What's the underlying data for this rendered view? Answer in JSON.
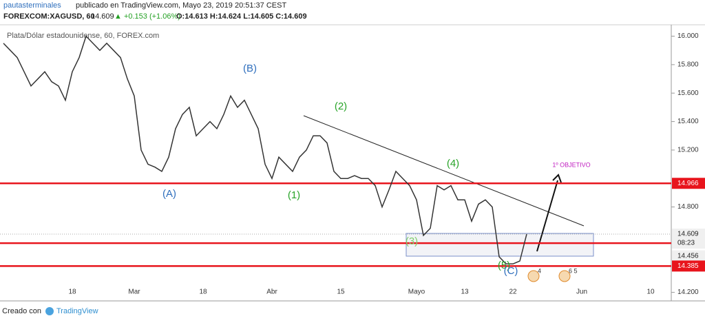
{
  "header": {
    "author": "pautasterminales",
    "published": "publicado en TradingView.com, Mayo 23, 2019 20:51:37 CEST",
    "symbol": "FOREXCOM:XAGUSD, 60",
    "price": "14.609",
    "change": "▲ +0.153 (+1.06%)",
    "ohlc": "O:14.613 H:14.624 L:14.605 C:14.609"
  },
  "chart_data": {
    "type": "line",
    "title": "Plata/Dólar estadounidense, 60, FOREX.com",
    "categories": [
      null,
      null,
      null,
      null,
      null,
      null,
      null,
      null,
      null,
      null,
      "18",
      null,
      null,
      null,
      null,
      null,
      null,
      null,
      null,
      "Mar",
      null,
      null,
      null,
      null,
      null,
      null,
      null,
      null,
      null,
      "18",
      null,
      null,
      null,
      null,
      null,
      null,
      null,
      null,
      null,
      "Abr",
      null,
      null,
      null,
      null,
      null,
      null,
      null,
      null,
      null,
      "15",
      null,
      null,
      null,
      null,
      null,
      null,
      null,
      null,
      null,
      null,
      "Mayo",
      null,
      null,
      null,
      null,
      null,
      null,
      "13",
      null,
      null,
      null,
      null,
      null,
      null,
      "22",
      null,
      null,
      null,
      null,
      null,
      null,
      null,
      null,
      null,
      "Jun",
      null,
      null,
      null,
      null,
      null,
      null,
      null,
      null,
      null,
      "10",
      null,
      null
    ],
    "series": [
      {
        "color": "#333333",
        "values": [
          15.95,
          15.9,
          15.85,
          15.75,
          15.65,
          15.7,
          15.75,
          15.68,
          15.65,
          15.55,
          15.75,
          15.85,
          16.0,
          15.95,
          15.9,
          15.95,
          15.9,
          15.85,
          15.7,
          15.58,
          15.2,
          15.1,
          15.08,
          15.05,
          15.15,
          15.35,
          15.45,
          15.5,
          15.3,
          15.35,
          15.4,
          15.35,
          15.45,
          15.58,
          15.5,
          15.55,
          15.45,
          15.35,
          15.1,
          15.0,
          15.15,
          15.1,
          15.05,
          15.15,
          15.2,
          15.3,
          15.3,
          15.25,
          15.05,
          15.0,
          15.0,
          15.02,
          15.0,
          15.0,
          14.95,
          14.8,
          14.92,
          15.05,
          15.0,
          14.95,
          14.85,
          14.6,
          14.65,
          14.95,
          14.92,
          14.95,
          14.85,
          14.85,
          14.7,
          14.82,
          14.85,
          14.8,
          14.45,
          14.4,
          14.4,
          14.42,
          14.609,
          null,
          null,
          null,
          null,
          null,
          null,
          null,
          null,
          null,
          null,
          null,
          null,
          null,
          null,
          null,
          null,
          null,
          null,
          null,
          null
        ]
      }
    ],
    "ylim": [
      14.14,
      16.08
    ],
    "yticks": [
      {
        "value": 14.2,
        "label": "14.200"
      },
      {
        "value": 14.8,
        "label": "14.800"
      },
      {
        "value": 15.2,
        "label": "15.200"
      },
      {
        "value": 15.4,
        "label": "15.400"
      },
      {
        "value": 15.6,
        "label": "15.600"
      },
      {
        "value": 15.8,
        "label": "15.800"
      },
      {
        "value": 16.0,
        "label": "16.000"
      }
    ],
    "price_levels": [
      {
        "value": 14.966,
        "label": "14.966"
      },
      {
        "value": 14.546,
        "label": "08:23"
      },
      {
        "value": 14.385,
        "label": "14.385"
      }
    ],
    "level_color": "#e8141c",
    "last_price": 14.609,
    "marker_price": 14.456,
    "annotations": [
      {
        "text": "(B)",
        "color": "#2f6fbd"
      },
      {
        "text": "(A)",
        "color": "#2f6fbd"
      },
      {
        "text": "(2)",
        "color": "#28a428"
      },
      {
        "text": "(1)",
        "color": "#28a428"
      },
      {
        "text": "(4)",
        "color": "#28a428"
      },
      {
        "text": "(3)",
        "color": "#7fcf6a"
      },
      {
        "text": "(5)",
        "color": "#28a428"
      },
      {
        "text": "(C)",
        "color": "#2f6fbd"
      },
      {
        "text": "1º OBJETIVO",
        "color": "#c020c0"
      }
    ],
    "events": [
      "4",
      "6 5"
    ]
  },
  "footer": {
    "created": "Creado con",
    "brand": "TradingView"
  }
}
